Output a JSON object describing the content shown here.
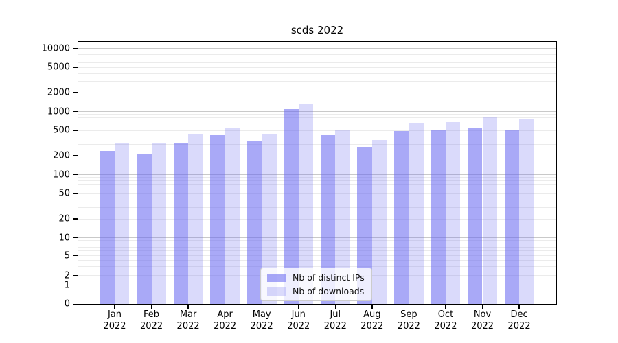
{
  "title": "scds 2022",
  "legend": {
    "items": [
      {
        "label": "Nb of distinct IPs",
        "swatch": "dark"
      },
      {
        "label": "Nb of downloads",
        "swatch": "light"
      }
    ]
  },
  "axes": {
    "y_tick_labels": [
      "0",
      "1",
      "2",
      "5",
      "10",
      "20",
      "50",
      "100",
      "200",
      "500",
      "1000",
      "2000",
      "5000",
      "10000"
    ],
    "x_months": [
      "Jan",
      "Feb",
      "Mar",
      "Apr",
      "May",
      "Jun",
      "Jul",
      "Aug",
      "Sep",
      "Oct",
      "Nov",
      "Dec"
    ],
    "x_year": "2022"
  },
  "colors": {
    "bar_base_rgb": "102,102,240",
    "dark_alpha": 0.56,
    "light_alpha": 0.24,
    "major_grid": "#c9c9c9",
    "minor_grid": "#ebebeb",
    "axis_color": "#000000",
    "legend_border": "#cccccc"
  },
  "chart_data": {
    "type": "bar",
    "title": "scds 2022",
    "categories": [
      "Jan 2022",
      "Feb 2022",
      "Mar 2022",
      "Apr 2022",
      "May 2022",
      "Jun 2022",
      "Jul 2022",
      "Aug 2022",
      "Sep 2022",
      "Oct 2022",
      "Nov 2022",
      "Dec 2022"
    ],
    "series": [
      {
        "name": "Nb of distinct IPs",
        "values": [
          240,
          215,
          320,
          420,
          335,
          1100,
          420,
          270,
          490,
          500,
          560,
          500
        ]
      },
      {
        "name": "Nb of downloads",
        "values": [
          320,
          310,
          430,
          560,
          430,
          1300,
          520,
          360,
          650,
          685,
          840,
          760
        ]
      }
    ],
    "yscale": "symlog",
    "y_ticks": [
      0,
      1,
      2,
      5,
      10,
      20,
      50,
      100,
      200,
      500,
      1000,
      2000,
      5000,
      10000
    ],
    "ylim": [
      0,
      13000
    ],
    "grid": "both",
    "legend_position": "lower center"
  }
}
